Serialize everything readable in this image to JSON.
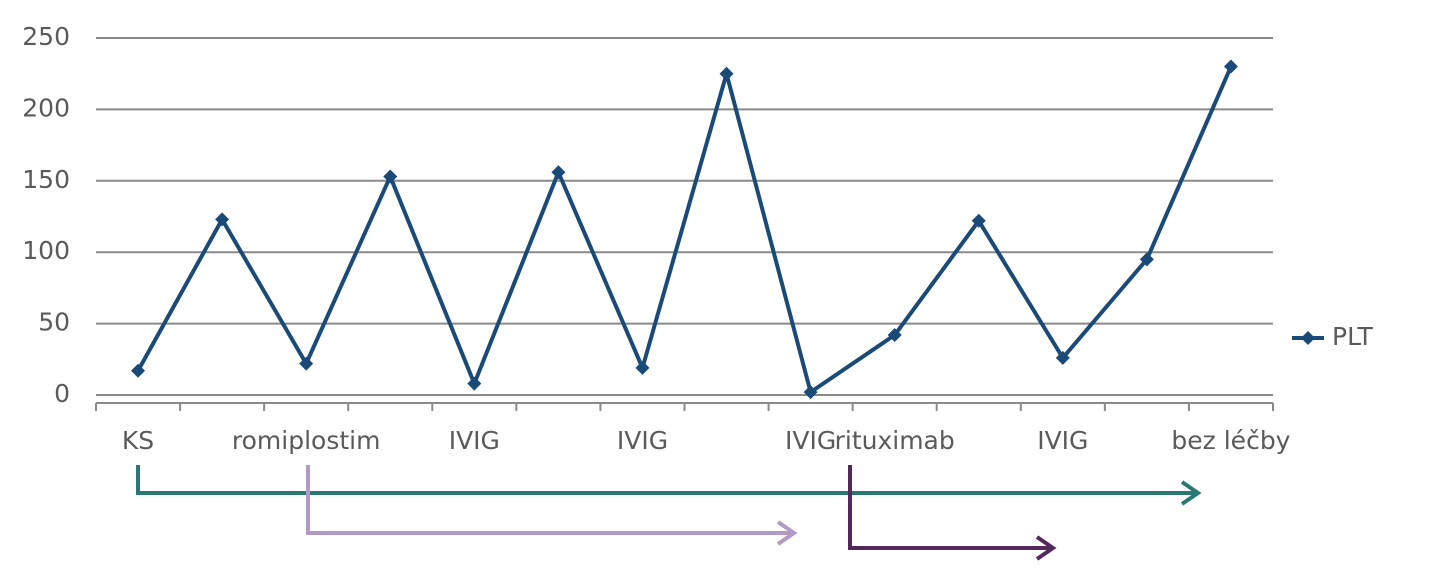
{
  "chart_data": {
    "type": "line",
    "categories": [
      "KS",
      null,
      "romiplostim",
      null,
      "IVIG",
      null,
      "IVIG",
      null,
      "IVIG",
      "rituximab",
      null,
      "IVIG",
      null,
      "bez léčby"
    ],
    "series": [
      {
        "name": "PLT",
        "color": "#1a4a78",
        "values": [
          17,
          123,
          22,
          153,
          8,
          156,
          19,
          225,
          2,
          42,
          122,
          26,
          95,
          230
        ]
      }
    ],
    "ylim": [
      0,
      250
    ],
    "yticks": [
      0,
      50,
      100,
      150,
      200,
      250
    ],
    "grid": true,
    "legend": "right"
  }
}
